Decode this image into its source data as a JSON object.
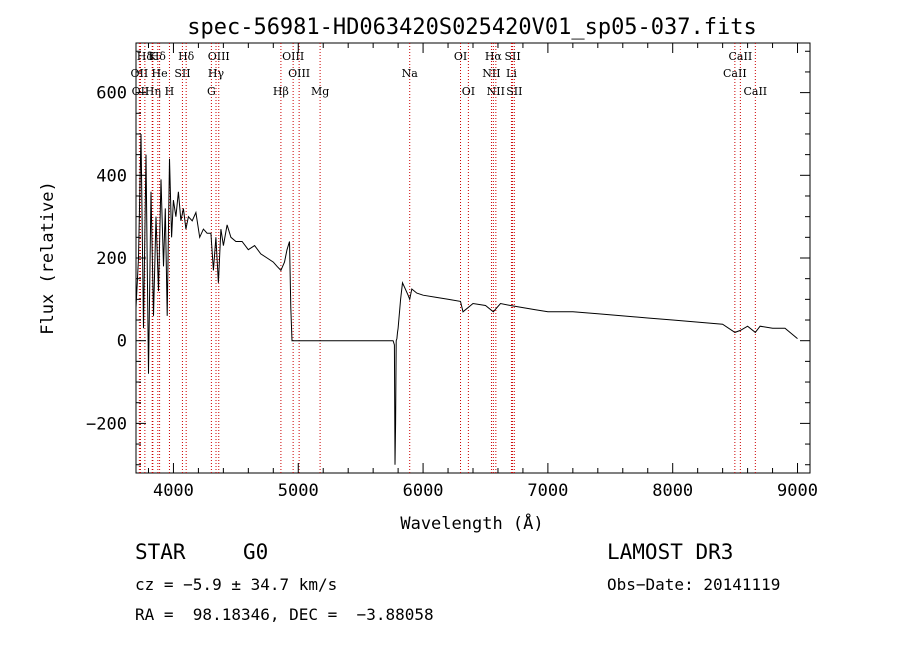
{
  "chart_data": {
    "type": "line",
    "title": "spec-56981-HD063420S025420V01_sp05-037.fits",
    "xlabel": "Wavelength (Å)",
    "ylabel": "Flux (relative)",
    "xlim": [
      3700,
      9100
    ],
    "ylim": [
      -320,
      720
    ],
    "xticks": [
      4000,
      5000,
      6000,
      7000,
      8000,
      9000
    ],
    "yticks": [
      -200,
      0,
      200,
      400,
      600
    ],
    "xtick_labels": [
      "4000",
      "5000",
      "6000",
      "7000",
      "8000",
      "9000"
    ],
    "ytick_labels": [
      "−200",
      "0",
      "200",
      "400",
      "600"
    ],
    "grid": false,
    "series": [
      {
        "name": "spectrum",
        "x": [
          3700,
          3720,
          3740,
          3760,
          3780,
          3800,
          3820,
          3840,
          3860,
          3880,
          3900,
          3920,
          3935,
          3950,
          3968,
          3985,
          4000,
          4020,
          4040,
          4060,
          4080,
          4100,
          4120,
          4150,
          4180,
          4210,
          4240,
          4270,
          4300,
          4320,
          4340,
          4360,
          4380,
          4400,
          4430,
          4460,
          4500,
          4550,
          4600,
          4650,
          4700,
          4750,
          4800,
          4830,
          4861,
          4890,
          4910,
          4930,
          4940,
          4950,
          5000,
          5200,
          5400,
          5600,
          5760,
          5770,
          5775,
          5780,
          5785,
          5790,
          5795,
          5800,
          5820,
          5835,
          5850,
          5880,
          5893,
          5910,
          5950,
          6000,
          6100,
          6200,
          6300,
          6320,
          6400,
          6500,
          6563,
          6620,
          6700,
          6800,
          6900,
          7000,
          7200,
          7400,
          7600,
          7800,
          8000,
          8200,
          8400,
          8498,
          8542,
          8600,
          8662,
          8700,
          8800,
          8900,
          9000
        ],
        "y": [
          80,
          200,
          500,
          30,
          450,
          -80,
          360,
          60,
          300,
          120,
          390,
          180,
          320,
          60,
          440,
          250,
          340,
          300,
          360,
          290,
          320,
          270,
          300,
          290,
          310,
          250,
          270,
          260,
          260,
          170,
          250,
          140,
          270,
          230,
          280,
          250,
          240,
          240,
          220,
          230,
          210,
          200,
          190,
          180,
          170,
          190,
          220,
          240,
          80,
          0,
          0,
          0,
          0,
          0,
          0,
          -10,
          -300,
          -200,
          0,
          5,
          20,
          30,
          100,
          140,
          130,
          110,
          100,
          125,
          115,
          110,
          105,
          100,
          95,
          70,
          90,
          85,
          70,
          90,
          85,
          80,
          75,
          70,
          70,
          65,
          60,
          55,
          50,
          45,
          40,
          20,
          25,
          35,
          20,
          35,
          30,
          30,
          5
        ]
      }
    ],
    "spectral_lines": [
      {
        "label": "Hδ",
        "wave": 3771,
        "row": 0
      },
      {
        "label": "K",
        "wave": 3830,
        "row": 0
      },
      {
        "label": "Hδ",
        "wave": 3875,
        "row": 0
      },
      {
        "label": "OII",
        "wave": 3727,
        "row": 1
      },
      {
        "label": "He",
        "wave": 3889,
        "row": 1
      },
      {
        "label": "SII",
        "wave": 4072,
        "row": 1
      },
      {
        "label": "OII",
        "wave": 3736,
        "row": 2
      },
      {
        "label": "Hη",
        "wave": 3835,
        "row": 2
      },
      {
        "label": "H",
        "wave": 3968,
        "row": 2
      },
      {
        "label": "Hδ",
        "wave": 4102,
        "row": 0
      },
      {
        "label": "OIII",
        "wave": 4363,
        "row": 0
      },
      {
        "label": "Hγ",
        "wave": 4341,
        "row": 1
      },
      {
        "label": "G",
        "wave": 4304,
        "row": 2
      },
      {
        "label": "OIII",
        "wave": 4959,
        "row": 0
      },
      {
        "label": "OIII",
        "wave": 5007,
        "row": 1
      },
      {
        "label": "Hβ",
        "wave": 4861,
        "row": 2
      },
      {
        "label": "Mg",
        "wave": 5175,
        "row": 2
      },
      {
        "label": "Na",
        "wave": 5893,
        "row": 1
      },
      {
        "label": "OI",
        "wave": 6300,
        "row": 0
      },
      {
        "label": "OI",
        "wave": 6363,
        "row": 2
      },
      {
        "label": "Hα",
        "wave": 6563,
        "row": 0
      },
      {
        "label": "NII",
        "wave": 6548,
        "row": 1
      },
      {
        "label": "NII",
        "wave": 6583,
        "row": 2
      },
      {
        "label": "SII",
        "wave": 6717,
        "row": 0
      },
      {
        "label": "Li",
        "wave": 6708,
        "row": 1
      },
      {
        "label": "SII",
        "wave": 6731,
        "row": 2
      },
      {
        "label": "CaII",
        "wave": 8498,
        "row": 1
      },
      {
        "label": "CaII",
        "wave": 8542,
        "row": 0
      },
      {
        "label": "CaII",
        "wave": 8662,
        "row": 2
      }
    ]
  },
  "info": {
    "object_class": "STAR",
    "subclass": "G0",
    "survey": "LAMOST DR3",
    "redshift_line": "cz = −5.9 ± 34.7 km/s",
    "obs_date_line": "Obs−Date: 20141119",
    "coords_line": "RA =  98.18346, DEC =  −3.88058"
  },
  "colors": {
    "spectrum": "#000000",
    "line_marker": "#cc0000",
    "background": "#ffffff"
  }
}
